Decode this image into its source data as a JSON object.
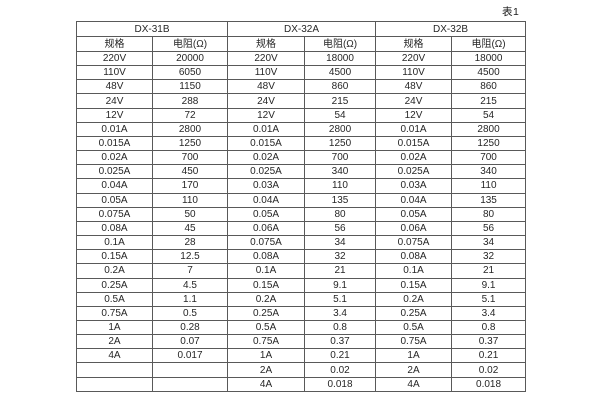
{
  "chart_data": {
    "type": "table",
    "caption": "表1",
    "groups": [
      {
        "name": "DX-31B",
        "col_headers": [
          "规格",
          "电阻(Ω)"
        ],
        "rows": [
          [
            "220V",
            "20000"
          ],
          [
            "110V",
            "6050"
          ],
          [
            "48V",
            "1150"
          ],
          [
            "24V",
            "288"
          ],
          [
            "12V",
            "72"
          ],
          [
            "0.01A",
            "2800"
          ],
          [
            "0.015A",
            "1250"
          ],
          [
            "0.02A",
            "700"
          ],
          [
            "0.025A",
            "450"
          ],
          [
            "0.04A",
            "170"
          ],
          [
            "0.05A",
            "110"
          ],
          [
            "0.075A",
            "50"
          ],
          [
            "0.08A",
            "45"
          ],
          [
            "0.1A",
            "28"
          ],
          [
            "0.15A",
            "12.5"
          ],
          [
            "0.2A",
            "7"
          ],
          [
            "0.25A",
            "4.5"
          ],
          [
            "0.5A",
            "1.1"
          ],
          [
            "0.75A",
            "0.5"
          ],
          [
            "1A",
            "0.28"
          ],
          [
            "2A",
            "0.07"
          ],
          [
            "4A",
            "0.017"
          ],
          [
            "",
            ""
          ],
          [
            "",
            ""
          ]
        ]
      },
      {
        "name": "DX-32A",
        "col_headers": [
          "规格",
          "电阻(Ω)"
        ],
        "rows": [
          [
            "220V",
            "18000"
          ],
          [
            "110V",
            "4500"
          ],
          [
            "48V",
            "860"
          ],
          [
            "24V",
            "215"
          ],
          [
            "12V",
            "54"
          ],
          [
            "0.01A",
            "2800"
          ],
          [
            "0.015A",
            "1250"
          ],
          [
            "0.02A",
            "700"
          ],
          [
            "0.025A",
            "340"
          ],
          [
            "0.03A",
            "110"
          ],
          [
            "0.04A",
            "135"
          ],
          [
            "0.05A",
            "80"
          ],
          [
            "0.06A",
            "56"
          ],
          [
            "0.075A",
            "34"
          ],
          [
            "0.08A",
            "32"
          ],
          [
            "0.1A",
            "21"
          ],
          [
            "0.15A",
            "9.1"
          ],
          [
            "0.2A",
            "5.1"
          ],
          [
            "0.25A",
            "3.4"
          ],
          [
            "0.5A",
            "0.8"
          ],
          [
            "0.75A",
            "0.37"
          ],
          [
            "1A",
            "0.21"
          ],
          [
            "2A",
            "0.02"
          ],
          [
            "4A",
            "0.018"
          ]
        ]
      },
      {
        "name": "DX-32B",
        "col_headers": [
          "规格",
          "电阻(Ω)"
        ],
        "rows": [
          [
            "220V",
            "18000"
          ],
          [
            "110V",
            "4500"
          ],
          [
            "48V",
            "860"
          ],
          [
            "24V",
            "215"
          ],
          [
            "12V",
            "54"
          ],
          [
            "0.01A",
            "2800"
          ],
          [
            "0.015A",
            "1250"
          ],
          [
            "0.02A",
            "700"
          ],
          [
            "0.025A",
            "340"
          ],
          [
            "0.03A",
            "110"
          ],
          [
            "0.04A",
            "135"
          ],
          [
            "0.05A",
            "80"
          ],
          [
            "0.06A",
            "56"
          ],
          [
            "0.075A",
            "34"
          ],
          [
            "0.08A",
            "32"
          ],
          [
            "0.1A",
            "21"
          ],
          [
            "0.15A",
            "9.1"
          ],
          [
            "0.2A",
            "5.1"
          ],
          [
            "0.25A",
            "3.4"
          ],
          [
            "0.5A",
            "0.8"
          ],
          [
            "0.75A",
            "0.37"
          ],
          [
            "1A",
            "0.21"
          ],
          [
            "2A",
            "0.02"
          ],
          [
            "4A",
            "0.018"
          ]
        ]
      }
    ]
  }
}
